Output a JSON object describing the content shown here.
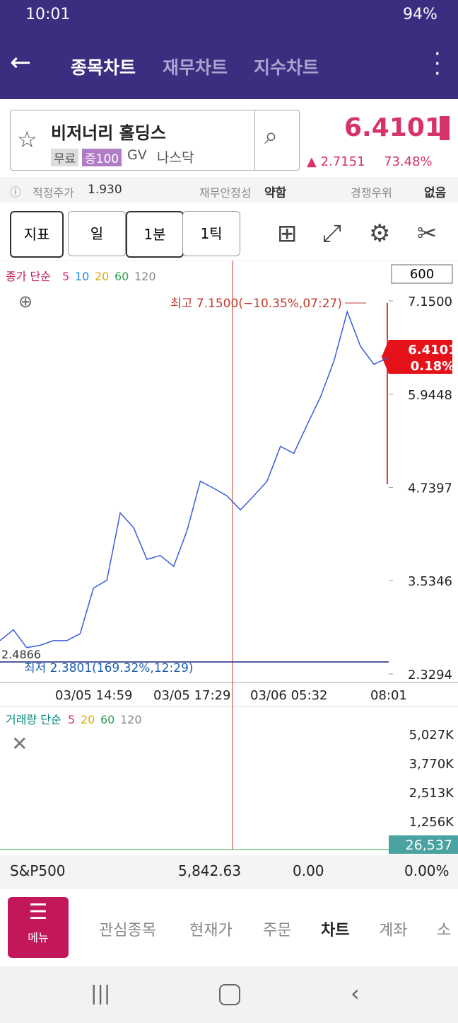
{
  "status": {
    "time": "10:01",
    "battery": "94%"
  },
  "header": {
    "tabs": [
      "종목차트",
      "재무차트",
      "지수차트"
    ]
  },
  "stock": {
    "name": "비저너리 홀딩스",
    "tags": [
      "무료",
      "증100",
      "GV",
      "나스닥"
    ],
    "price": "6.4101",
    "change": "▲ 2.7151",
    "change_pct": "73.48%"
  },
  "info": [
    {
      "label": "적정주가",
      "value": "1.930"
    },
    {
      "label": "재무안정성",
      "value": "약함"
    },
    {
      "label": "경쟁우위",
      "value": "없음"
    }
  ],
  "toolbar": {
    "buttons": [
      "지표",
      "일",
      "1분",
      "1틱"
    ]
  },
  "chart": {
    "legend_title": "종가 단순",
    "legend": [
      {
        "name": "5",
        "color": "#d6336c"
      },
      {
        "name": "10",
        "color": "#1e88e5"
      },
      {
        "name": "20",
        "color": "#e0a800"
      },
      {
        "name": "60",
        "color": "#2e9e4f"
      },
      {
        "name": "120",
        "color": "#888888"
      }
    ],
    "count": "600",
    "yticks": [
      {
        "value": 7.15,
        "label": "7.1500"
      },
      {
        "value": 5.9448,
        "label": "5.9448"
      },
      {
        "value": 4.7397,
        "label": "4.7397"
      },
      {
        "value": 3.5346,
        "label": "3.5346"
      },
      {
        "value": 2.3294,
        "label": "2.3294"
      }
    ],
    "high_note": "최고 7.1500(−10.35%,07:27)",
    "low_note": "최저 2.3801(169.32%,12:29)",
    "left_label": "2.4866",
    "current": {
      "price": "6.4101",
      "pct": "0.18%"
    },
    "xlabels": [
      "03/05 14:59",
      "03/05 17:29",
      "03/06 05:32",
      "08:01"
    ],
    "price": [
      2.76,
      2.9,
      2.67,
      2.7,
      2.76,
      2.76,
      2.85,
      3.44,
      3.54,
      4.41,
      4.22,
      3.81,
      3.86,
      3.72,
      4.18,
      4.82,
      4.73,
      4.63,
      4.45,
      4.63,
      4.82,
      5.27,
      5.18,
      5.55,
      5.91,
      6.37,
      7.01,
      6.56,
      6.33,
      6.41
    ]
  },
  "volume": {
    "legend_title": "거래량 단순",
    "legend": [
      {
        "name": "5",
        "color": "#d6336c"
      },
      {
        "name": "20",
        "color": "#e0a800"
      },
      {
        "name": "60",
        "color": "#2e9e4f"
      },
      {
        "name": "120",
        "color": "#888888"
      }
    ],
    "yticks": [
      "5,027K",
      "3,770K",
      "2,513K",
      "1,256K"
    ],
    "current": "26,537"
  },
  "index": {
    "name": "S&P500",
    "value": "5,842.63",
    "change": "0.00",
    "pct": "0.00%"
  },
  "nav": {
    "menu": "메뉴",
    "items": [
      "관심종목",
      "현재가",
      "주문",
      "차트",
      "계좌",
      "소"
    ]
  }
}
